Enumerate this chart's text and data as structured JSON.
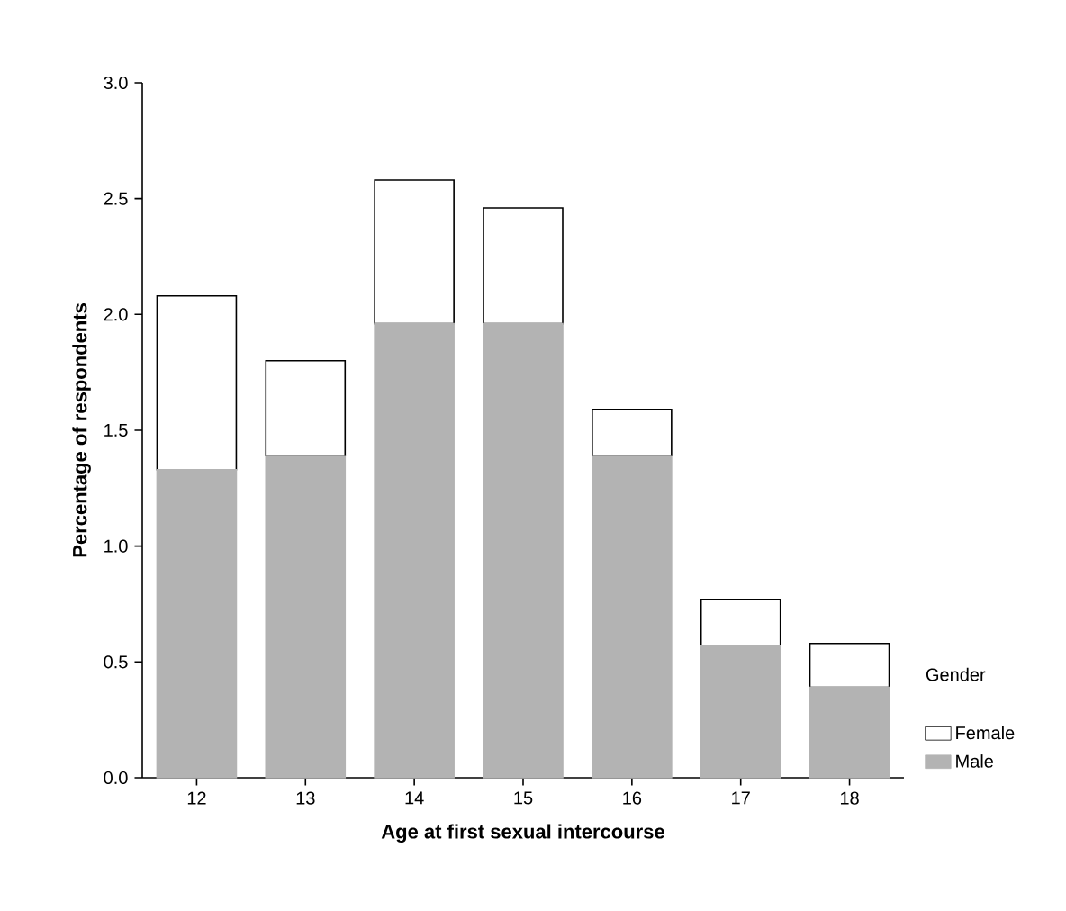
{
  "chart_data": {
    "type": "bar",
    "stacked": true,
    "xlabel": "Age at first sexual intercourse",
    "ylabel": "Percentage of respondents",
    "legend_title": "Gender",
    "legend": "right",
    "categories": [
      "12",
      "13",
      "14",
      "15",
      "16",
      "17",
      "18"
    ],
    "series": [
      {
        "name": "Male",
        "color": "#b3b3b3",
        "values": [
          1.33,
          1.39,
          1.96,
          1.96,
          1.39,
          0.57,
          0.39
        ]
      },
      {
        "name": "Female",
        "color": "#ffffff",
        "values": [
          0.75,
          0.41,
          0.62,
          0.5,
          0.2,
          0.2,
          0.19
        ]
      }
    ],
    "ylim": [
      0,
      3
    ],
    "yticks": [
      {
        "value": 0,
        "label": "0.0"
      },
      {
        "value": 0.5,
        "label": "0.5"
      },
      {
        "value": 1,
        "label": "1.0"
      },
      {
        "value": 1.5,
        "label": "1.5"
      },
      {
        "value": 2,
        "label": "2.0"
      },
      {
        "value": 2.5,
        "label": "2.5"
      },
      {
        "value": 3,
        "label": "3.0"
      }
    ]
  }
}
